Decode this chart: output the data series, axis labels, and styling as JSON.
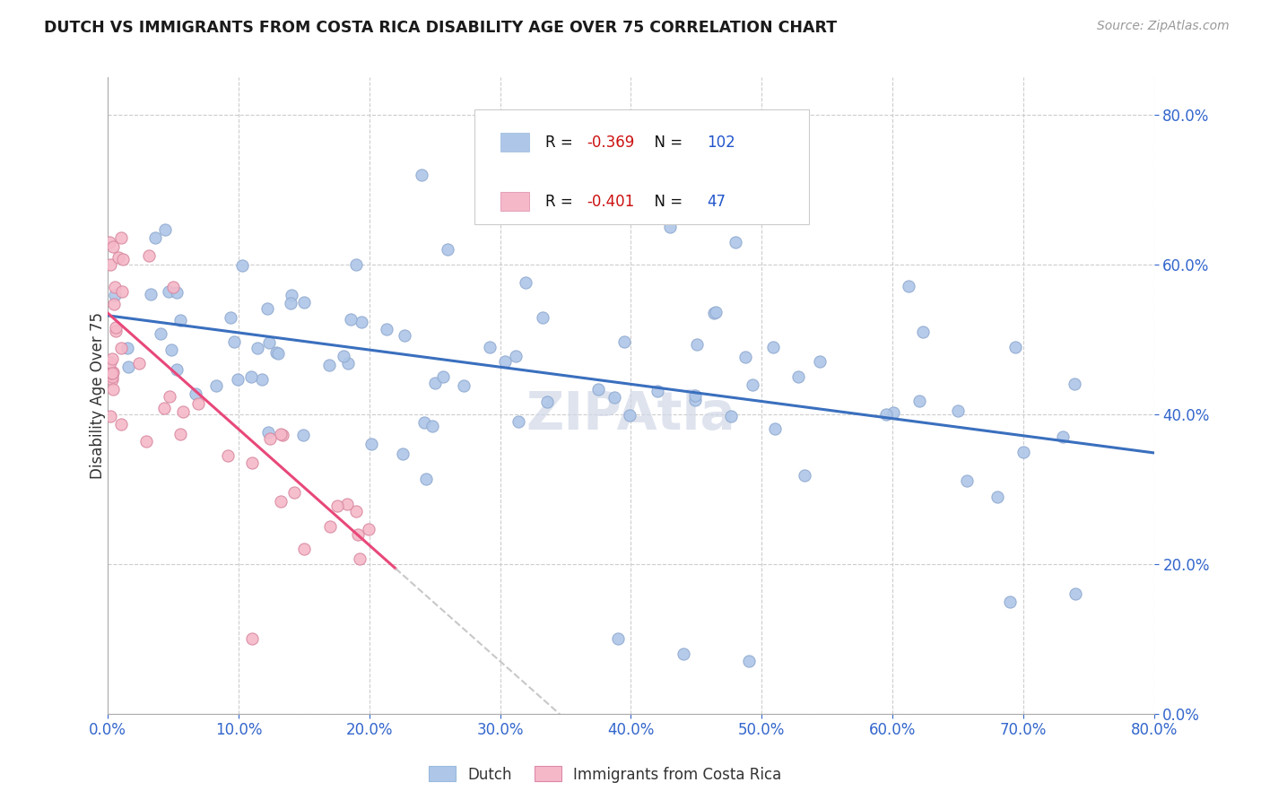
{
  "title": "DUTCH VS IMMIGRANTS FROM COSTA RICA DISABILITY AGE OVER 75 CORRELATION CHART",
  "source": "Source: ZipAtlas.com",
  "ylabel": "Disability Age Over 75",
  "r_dutch": -0.369,
  "n_dutch": 102,
  "r_costa_rica": -0.401,
  "n_costa_rica": 47,
  "legend_labels": [
    "Dutch",
    "Immigrants from Costa Rica"
  ],
  "dutch_color": "#aec6e8",
  "costa_rica_color": "#f5b8c8",
  "dutch_line_color": "#3a6fbe",
  "costa_rica_line_color": "#e8487a",
  "title_color": "#1a1a1a",
  "r_color": "#cc1111",
  "n_color": "#2255cc",
  "background_color": "#ffffff",
  "grid_color": "#c8c8c8",
  "watermark_color": "#d0d8e8",
  "xmin": 0.0,
  "xmax": 0.8,
  "ymin": 0.0,
  "ymax": 0.85,
  "xtick_vals": [
    0.0,
    0.1,
    0.2,
    0.3,
    0.4,
    0.5,
    0.6,
    0.7,
    0.8
  ],
  "ytick_vals": [
    0.0,
    0.2,
    0.4,
    0.6,
    0.8
  ]
}
